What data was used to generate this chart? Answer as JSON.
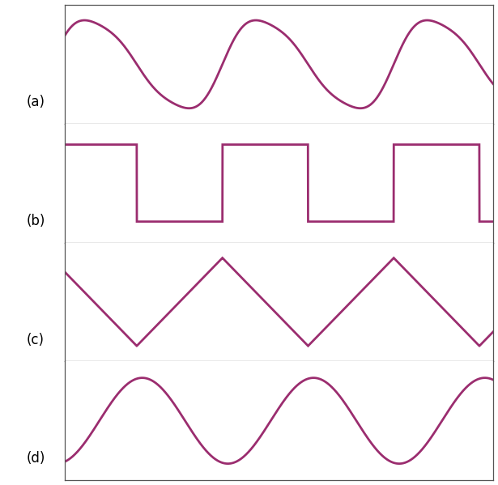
{
  "line_color": "#9B2D6F",
  "line_width": 2.0,
  "background_color": "#ffffff",
  "border_color": "#555555",
  "label_a": "(a)",
  "label_b": "(b)",
  "label_c": "(c)",
  "label_d": "(d)",
  "label_fontsize": 12,
  "n_points": 3000,
  "figsize": [
    6.15,
    5.99
  ],
  "dpi": 100
}
